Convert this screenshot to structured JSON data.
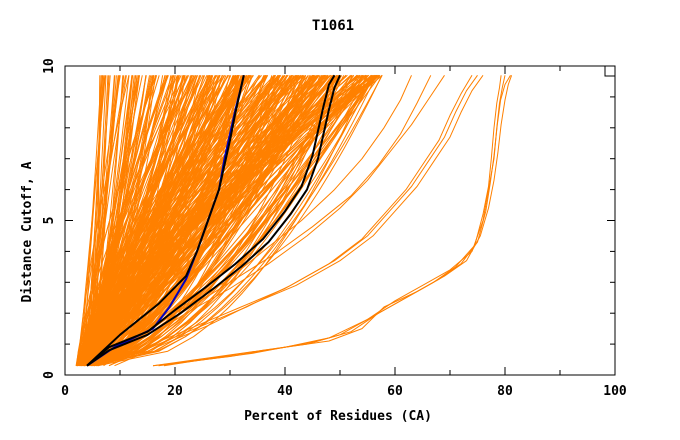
{
  "chart_data": {
    "type": "line",
    "title": "T1061",
    "xlabel": "Percent of Residues (CA)",
    "ylabel": "Distance Cutoff, A",
    "xlim": [
      0,
      100
    ],
    "ylim": [
      0,
      10
    ],
    "x_ticks": [
      "0",
      "20",
      "40",
      "60",
      "80",
      "100"
    ],
    "y_ticks": [
      "0",
      "5",
      "10"
    ],
    "grid": false,
    "legend": "none",
    "colors": {
      "bundle": "#ff8000",
      "highlight_blue": "#0000c0",
      "highlight_black": "#000000"
    },
    "highlight_series": [
      {
        "color": "#0000c0",
        "x": [
          4,
          9,
          16,
          19,
          22,
          24,
          26,
          28,
          29,
          30,
          31,
          32,
          32.5
        ],
        "y": [
          0.3,
          0.9,
          1.5,
          2.2,
          3.1,
          4.0,
          5.0,
          6.0,
          7.0,
          7.8,
          8.6,
          9.3,
          9.7
        ]
      },
      {
        "color": "#000000",
        "x": [
          4,
          10,
          17,
          22,
          24,
          26,
          28,
          29,
          30,
          31,
          32,
          32.5
        ],
        "y": [
          0.3,
          1.3,
          2.3,
          3.2,
          4.0,
          5.0,
          6.0,
          6.8,
          7.6,
          8.5,
          9.3,
          9.7
        ]
      },
      {
        "color": "#000000",
        "x": [
          4,
          8,
          15,
          21,
          27,
          32,
          37,
          41,
          44,
          46,
          47,
          48,
          49,
          50
        ],
        "y": [
          0.3,
          0.8,
          1.3,
          2.0,
          2.8,
          3.5,
          4.3,
          5.2,
          6.0,
          7.0,
          7.8,
          8.6,
          9.3,
          9.7
        ]
      },
      {
        "color": "#000000",
        "x": [
          4,
          8,
          15,
          20,
          26,
          31,
          36,
          40,
          43,
          45,
          46,
          47,
          48,
          49
        ],
        "y": [
          0.3,
          0.9,
          1.4,
          2.1,
          2.9,
          3.6,
          4.4,
          5.3,
          6.1,
          7.1,
          7.9,
          8.7,
          9.4,
          9.7
        ]
      }
    ],
    "outlier_series": [
      {
        "x": [
          16,
          30,
          40,
          48,
          55,
          60,
          65,
          70,
          74,
          76,
          77,
          78,
          78.5,
          79,
          79.5,
          80
        ],
        "y": [
          0.3,
          0.6,
          0.9,
          1.2,
          1.8,
          2.4,
          2.9,
          3.4,
          4.0,
          5.0,
          6.0,
          7.0,
          8.0,
          8.8,
          9.3,
          9.7
        ]
      },
      {
        "x": [
          16,
          32,
          44,
          50,
          56,
          62,
          67,
          71,
          74.5,
          76,
          77,
          77.5,
          78,
          78.5,
          79,
          79.3
        ],
        "y": [
          0.3,
          0.7,
          1.0,
          1.3,
          1.9,
          2.5,
          3.0,
          3.5,
          4.2,
          5.2,
          6.1,
          7.0,
          8.0,
          8.8,
          9.3,
          9.7
        ]
      },
      {
        "x": [
          17,
          34,
          46,
          52,
          57,
          63,
          68,
          72,
          75,
          76.5,
          77.3,
          78,
          78.6,
          79.2,
          80,
          81
        ],
        "y": [
          0.3,
          0.7,
          1.1,
          1.4,
          2.0,
          2.6,
          3.1,
          3.6,
          4.3,
          5.3,
          6.2,
          7.1,
          8.1,
          8.9,
          9.4,
          9.7
        ]
      },
      {
        "x": [
          18,
          36,
          48,
          54,
          58,
          64,
          69,
          73,
          75.5,
          77,
          78,
          78.7,
          79.3,
          80,
          80.6,
          81.2
        ],
        "y": [
          0.3,
          0.8,
          1.1,
          1.5,
          2.2,
          2.7,
          3.2,
          3.7,
          4.5,
          5.4,
          6.3,
          7.2,
          8.1,
          8.9,
          9.4,
          9.7
        ]
      },
      {
        "x": [
          8,
          16,
          24,
          32,
          40,
          48,
          54,
          58,
          62,
          65,
          68,
          70,
          72,
          74
        ],
        "y": [
          0.3,
          1.0,
          1.6,
          2.2,
          2.8,
          3.6,
          4.4,
          5.2,
          6.0,
          6.8,
          7.6,
          8.4,
          9.1,
          9.7
        ]
      },
      {
        "x": [
          8,
          17,
          25,
          33,
          41,
          49,
          55,
          59,
          63,
          66,
          69,
          71,
          73,
          75
        ],
        "y": [
          0.3,
          1.0,
          1.6,
          2.2,
          2.9,
          3.7,
          4.5,
          5.3,
          6.1,
          6.9,
          7.7,
          8.5,
          9.2,
          9.7
        ]
      },
      {
        "x": [
          9,
          18,
          26,
          34,
          42,
          50,
          56,
          60,
          64,
          67,
          70,
          72,
          74,
          76
        ],
        "y": [
          0.3,
          1.0,
          1.6,
          2.3,
          2.9,
          3.7,
          4.5,
          5.3,
          6.1,
          6.9,
          7.7,
          8.5,
          9.2,
          9.7
        ]
      },
      {
        "x": [
          7,
          15,
          22,
          30,
          37,
          44,
          50,
          55,
          59,
          63,
          66,
          69
        ],
        "y": [
          0.3,
          1.2,
          2.0,
          2.8,
          3.6,
          4.5,
          5.4,
          6.3,
          7.2,
          8.1,
          8.9,
          9.7
        ]
      },
      {
        "x": [
          6,
          14,
          22,
          30,
          38,
          45,
          52,
          57,
          61,
          64,
          66.5
        ],
        "y": [
          0.3,
          1.2,
          2.1,
          3.0,
          3.9,
          4.8,
          5.8,
          6.8,
          7.8,
          8.8,
          9.7
        ]
      },
      {
        "x": [
          6,
          13,
          21,
          29,
          36,
          43,
          49,
          54,
          58,
          61,
          63
        ],
        "y": [
          0.3,
          1.2,
          2.1,
          3.0,
          4.0,
          5.0,
          6.0,
          7.0,
          8.0,
          8.9,
          9.7
        ]
      }
    ]
  }
}
